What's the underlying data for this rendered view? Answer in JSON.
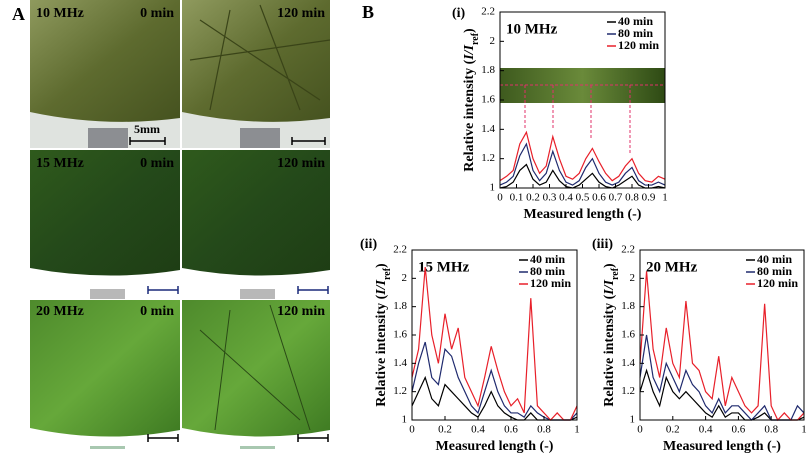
{
  "figure_labels": [
    "A",
    "B"
  ],
  "photos": [
    {
      "frequency": "10 MHz",
      "before": "0 min",
      "after": "120 min"
    },
    {
      "frequency": "15 MHz",
      "before": "0 min",
      "after": "120 min"
    },
    {
      "frequency": "20 MHz",
      "before": "0 min",
      "after": "120 min"
    }
  ],
  "scale_label": "5mm",
  "chart_data": [
    {
      "type": "line",
      "panel": "(i)",
      "title": "10 MHz",
      "xlabel": "Measured length (-)",
      "ylabel": [
        "Relative intensity (",
        "I/I",
        "ref",
        ")"
      ],
      "xlim": [
        0,
        1
      ],
      "xticks": [
        0,
        0.1,
        0.2,
        0.3,
        0.4,
        0.5,
        0.6,
        0.7,
        0.8,
        0.9,
        1
      ],
      "ylim": [
        1,
        2.2
      ],
      "yticks": [
        1,
        1.2,
        1.4,
        1.6,
        1.8,
        2,
        2.2
      ],
      "x": [
        0,
        0.04,
        0.08,
        0.12,
        0.16,
        0.2,
        0.24,
        0.28,
        0.32,
        0.36,
        0.4,
        0.44,
        0.48,
        0.52,
        0.56,
        0.6,
        0.64,
        0.68,
        0.72,
        0.76,
        0.8,
        0.84,
        0.88,
        0.92,
        0.96,
        1
      ],
      "series": [
        {
          "name": "40 min",
          "color": "#000000",
          "values": [
            1,
            1.01,
            1.04,
            1.12,
            1.16,
            1.06,
            1.02,
            1.04,
            1.12,
            1.05,
            1.01,
            1,
            1.02,
            1.06,
            1.1,
            1.04,
            1.01,
            1,
            1.02,
            1.05,
            1.08,
            1.02,
            1,
            1,
            1.01,
            1
          ]
        },
        {
          "name": "80 min",
          "color": "#1f2a6e",
          "values": [
            1.02,
            1.04,
            1.08,
            1.22,
            1.3,
            1.12,
            1.05,
            1.1,
            1.25,
            1.12,
            1.04,
            1.02,
            1.05,
            1.14,
            1.2,
            1.1,
            1.04,
            1.02,
            1.04,
            1.1,
            1.14,
            1.05,
            1.02,
            1.02,
            1.04,
            1.02
          ]
        },
        {
          "name": "120 min",
          "color": "#e8202a",
          "values": [
            1.05,
            1.08,
            1.12,
            1.3,
            1.38,
            1.2,
            1.1,
            1.15,
            1.35,
            1.2,
            1.08,
            1.06,
            1.1,
            1.2,
            1.27,
            1.18,
            1.1,
            1.05,
            1.08,
            1.15,
            1.2,
            1.1,
            1.05,
            1.04,
            1.08,
            1.06
          ]
        }
      ]
    },
    {
      "type": "line",
      "panel": "(ii)",
      "title": "15 MHz",
      "xlabel": "Measured length (-)",
      "ylabel": [
        "Relative intensity (",
        "I/I",
        "ref",
        ")"
      ],
      "xlim": [
        0,
        1
      ],
      "xticks": [
        0,
        0.2,
        0.4,
        0.6,
        0.8,
        1
      ],
      "ylim": [
        1,
        2.2
      ],
      "yticks": [
        1,
        1.2,
        1.4,
        1.6,
        1.8,
        2,
        2.2
      ],
      "x": [
        0,
        0.04,
        0.08,
        0.12,
        0.16,
        0.2,
        0.24,
        0.28,
        0.32,
        0.36,
        0.4,
        0.44,
        0.48,
        0.52,
        0.56,
        0.6,
        0.64,
        0.68,
        0.72,
        0.76,
        0.8,
        0.84,
        0.88,
        0.92,
        0.96,
        1
      ],
      "series": [
        {
          "name": "40 min",
          "color": "#000000",
          "values": [
            1.1,
            1.2,
            1.3,
            1.15,
            1.1,
            1.25,
            1.2,
            1.15,
            1.1,
            1.05,
            1.02,
            1.1,
            1.2,
            1.1,
            1.05,
            1.02,
            1,
            1,
            1.05,
            1,
            1,
            1,
            1,
            1,
            1,
            1.02
          ]
        },
        {
          "name": "80 min",
          "color": "#1f2a6e",
          "values": [
            1.2,
            1.4,
            1.55,
            1.3,
            1.25,
            1.5,
            1.45,
            1.3,
            1.2,
            1.1,
            1.05,
            1.2,
            1.35,
            1.2,
            1.1,
            1.05,
            1.05,
            1.02,
            1.1,
            1.05,
            1.02,
            1,
            1,
            1,
            1,
            1.05
          ]
        },
        {
          "name": "120 min",
          "color": "#e8202a",
          "values": [
            1.3,
            1.5,
            2.08,
            1.6,
            1.4,
            1.75,
            1.5,
            1.65,
            1.3,
            1.2,
            1.1,
            1.3,
            1.52,
            1.35,
            1.2,
            1.1,
            1.15,
            1.05,
            1.86,
            1.1,
            1.05,
            1,
            1.05,
            1,
            1,
            1.1
          ]
        }
      ]
    },
    {
      "type": "line",
      "panel": "(iii)",
      "title": "20 MHz",
      "xlabel": "Measured length (-)",
      "ylabel": [
        "Relative intensity (",
        "I/I",
        "ref",
        ")"
      ],
      "xlim": [
        0,
        1
      ],
      "xticks": [
        0,
        0.2,
        0.4,
        0.6,
        0.8,
        1
      ],
      "ylim": [
        1,
        2.2
      ],
      "yticks": [
        1,
        1.2,
        1.4,
        1.6,
        1.8,
        2,
        2.2
      ],
      "x": [
        0,
        0.04,
        0.08,
        0.12,
        0.16,
        0.2,
        0.24,
        0.28,
        0.32,
        0.36,
        0.4,
        0.44,
        0.48,
        0.52,
        0.56,
        0.6,
        0.64,
        0.68,
        0.72,
        0.76,
        0.8,
        0.84,
        0.88,
        0.92,
        0.96,
        1
      ],
      "series": [
        {
          "name": "40 min",
          "color": "#000000",
          "values": [
            1.2,
            1.35,
            1.2,
            1.1,
            1.3,
            1.2,
            1.15,
            1.2,
            1.15,
            1.1,
            1.05,
            1.02,
            1.1,
            1.02,
            1.05,
            1.05,
            1,
            1,
            1.02,
            1.05,
            1,
            1,
            1,
            1,
            1,
            1.02
          ]
        },
        {
          "name": "80 min",
          "color": "#1f2a6e",
          "values": [
            1.3,
            1.6,
            1.3,
            1.2,
            1.4,
            1.3,
            1.2,
            1.35,
            1.25,
            1.2,
            1.1,
            1.05,
            1.15,
            1.05,
            1.1,
            1.1,
            1.05,
            1,
            1.05,
            1.1,
            1,
            1,
            1,
            1,
            1.1,
            1.05
          ]
        },
        {
          "name": "120 min",
          "color": "#e8202a",
          "values": [
            1.4,
            2.05,
            1.5,
            1.3,
            1.65,
            1.4,
            1.3,
            1.84,
            1.4,
            1.35,
            1.2,
            1.15,
            1.45,
            1.1,
            1.3,
            1.2,
            1.1,
            1.05,
            1.1,
            1.82,
            1.1,
            1,
            1.05,
            1,
            1,
            1.05
          ]
        }
      ]
    }
  ]
}
